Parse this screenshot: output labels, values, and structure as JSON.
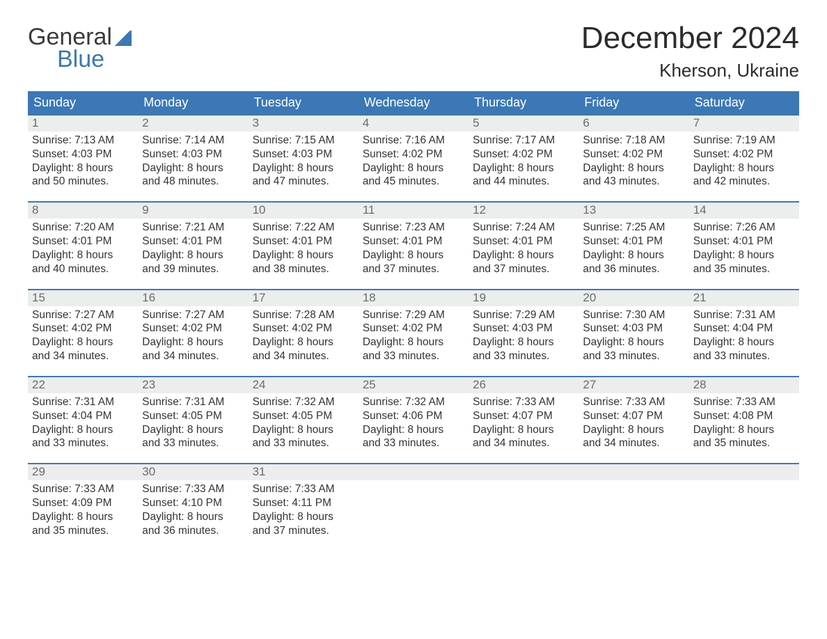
{
  "logo": {
    "line1": "General",
    "line2": "Blue"
  },
  "title": "December 2024",
  "location": "Kherson, Ukraine",
  "colors": {
    "accent": "#3b78b5",
    "header_bg": "#3b78b5",
    "header_text": "#ffffff",
    "day_strip_bg": "#eceded",
    "day_num_color": "#6b6b6b",
    "body_text": "#333333",
    "background": "#ffffff"
  },
  "weekdays": [
    "Sunday",
    "Monday",
    "Tuesday",
    "Wednesday",
    "Thursday",
    "Friday",
    "Saturday"
  ],
  "weeks": [
    [
      {
        "n": "1",
        "sr": "7:13 AM",
        "ss": "4:03 PM",
        "dl1": "Daylight: 8 hours",
        "dl2": "and 50 minutes."
      },
      {
        "n": "2",
        "sr": "7:14 AM",
        "ss": "4:03 PM",
        "dl1": "Daylight: 8 hours",
        "dl2": "and 48 minutes."
      },
      {
        "n": "3",
        "sr": "7:15 AM",
        "ss": "4:03 PM",
        "dl1": "Daylight: 8 hours",
        "dl2": "and 47 minutes."
      },
      {
        "n": "4",
        "sr": "7:16 AM",
        "ss": "4:02 PM",
        "dl1": "Daylight: 8 hours",
        "dl2": "and 45 minutes."
      },
      {
        "n": "5",
        "sr": "7:17 AM",
        "ss": "4:02 PM",
        "dl1": "Daylight: 8 hours",
        "dl2": "and 44 minutes."
      },
      {
        "n": "6",
        "sr": "7:18 AM",
        "ss": "4:02 PM",
        "dl1": "Daylight: 8 hours",
        "dl2": "and 43 minutes."
      },
      {
        "n": "7",
        "sr": "7:19 AM",
        "ss": "4:02 PM",
        "dl1": "Daylight: 8 hours",
        "dl2": "and 42 minutes."
      }
    ],
    [
      {
        "n": "8",
        "sr": "7:20 AM",
        "ss": "4:01 PM",
        "dl1": "Daylight: 8 hours",
        "dl2": "and 40 minutes."
      },
      {
        "n": "9",
        "sr": "7:21 AM",
        "ss": "4:01 PM",
        "dl1": "Daylight: 8 hours",
        "dl2": "and 39 minutes."
      },
      {
        "n": "10",
        "sr": "7:22 AM",
        "ss": "4:01 PM",
        "dl1": "Daylight: 8 hours",
        "dl2": "and 38 minutes."
      },
      {
        "n": "11",
        "sr": "7:23 AM",
        "ss": "4:01 PM",
        "dl1": "Daylight: 8 hours",
        "dl2": "and 37 minutes."
      },
      {
        "n": "12",
        "sr": "7:24 AM",
        "ss": "4:01 PM",
        "dl1": "Daylight: 8 hours",
        "dl2": "and 37 minutes."
      },
      {
        "n": "13",
        "sr": "7:25 AM",
        "ss": "4:01 PM",
        "dl1": "Daylight: 8 hours",
        "dl2": "and 36 minutes."
      },
      {
        "n": "14",
        "sr": "7:26 AM",
        "ss": "4:01 PM",
        "dl1": "Daylight: 8 hours",
        "dl2": "and 35 minutes."
      }
    ],
    [
      {
        "n": "15",
        "sr": "7:27 AM",
        "ss": "4:02 PM",
        "dl1": "Daylight: 8 hours",
        "dl2": "and 34 minutes."
      },
      {
        "n": "16",
        "sr": "7:27 AM",
        "ss": "4:02 PM",
        "dl1": "Daylight: 8 hours",
        "dl2": "and 34 minutes."
      },
      {
        "n": "17",
        "sr": "7:28 AM",
        "ss": "4:02 PM",
        "dl1": "Daylight: 8 hours",
        "dl2": "and 34 minutes."
      },
      {
        "n": "18",
        "sr": "7:29 AM",
        "ss": "4:02 PM",
        "dl1": "Daylight: 8 hours",
        "dl2": "and 33 minutes."
      },
      {
        "n": "19",
        "sr": "7:29 AM",
        "ss": "4:03 PM",
        "dl1": "Daylight: 8 hours",
        "dl2": "and 33 minutes."
      },
      {
        "n": "20",
        "sr": "7:30 AM",
        "ss": "4:03 PM",
        "dl1": "Daylight: 8 hours",
        "dl2": "and 33 minutes."
      },
      {
        "n": "21",
        "sr": "7:31 AM",
        "ss": "4:04 PM",
        "dl1": "Daylight: 8 hours",
        "dl2": "and 33 minutes."
      }
    ],
    [
      {
        "n": "22",
        "sr": "7:31 AM",
        "ss": "4:04 PM",
        "dl1": "Daylight: 8 hours",
        "dl2": "and 33 minutes."
      },
      {
        "n": "23",
        "sr": "7:31 AM",
        "ss": "4:05 PM",
        "dl1": "Daylight: 8 hours",
        "dl2": "and 33 minutes."
      },
      {
        "n": "24",
        "sr": "7:32 AM",
        "ss": "4:05 PM",
        "dl1": "Daylight: 8 hours",
        "dl2": "and 33 minutes."
      },
      {
        "n": "25",
        "sr": "7:32 AM",
        "ss": "4:06 PM",
        "dl1": "Daylight: 8 hours",
        "dl2": "and 33 minutes."
      },
      {
        "n": "26",
        "sr": "7:33 AM",
        "ss": "4:07 PM",
        "dl1": "Daylight: 8 hours",
        "dl2": "and 34 minutes."
      },
      {
        "n": "27",
        "sr": "7:33 AM",
        "ss": "4:07 PM",
        "dl1": "Daylight: 8 hours",
        "dl2": "and 34 minutes."
      },
      {
        "n": "28",
        "sr": "7:33 AM",
        "ss": "4:08 PM",
        "dl1": "Daylight: 8 hours",
        "dl2": "and 35 minutes."
      }
    ],
    [
      {
        "n": "29",
        "sr": "7:33 AM",
        "ss": "4:09 PM",
        "dl1": "Daylight: 8 hours",
        "dl2": "and 35 minutes."
      },
      {
        "n": "30",
        "sr": "7:33 AM",
        "ss": "4:10 PM",
        "dl1": "Daylight: 8 hours",
        "dl2": "and 36 minutes."
      },
      {
        "n": "31",
        "sr": "7:33 AM",
        "ss": "4:11 PM",
        "dl1": "Daylight: 8 hours",
        "dl2": "and 37 minutes."
      },
      null,
      null,
      null,
      null
    ]
  ],
  "labels": {
    "sunrise_prefix": "Sunrise: ",
    "sunset_prefix": "Sunset: "
  }
}
